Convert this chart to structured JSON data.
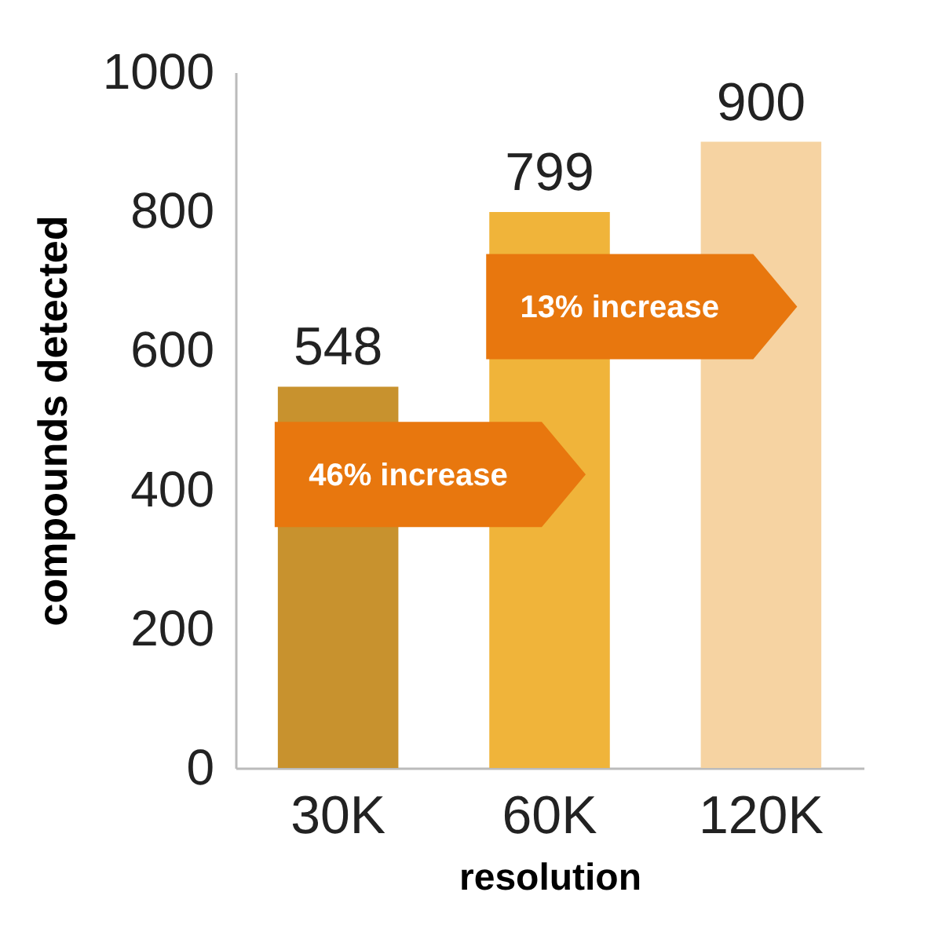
{
  "chart_data": {
    "type": "bar",
    "xlabel": "resolution",
    "ylabel": "compounds detected",
    "categories": [
      "30K",
      "60K",
      "120K"
    ],
    "values": [
      548,
      799,
      900
    ],
    "colors": [
      "#c8922e",
      "#f0b43a",
      "#f6d3a2"
    ],
    "ylim": [
      0,
      1000
    ],
    "yticks": [
      0,
      200,
      400,
      600,
      800,
      1000
    ],
    "data_labels": true,
    "grid": false,
    "legend": false,
    "annotations": [
      "46% increase",
      "13% increase"
    ]
  }
}
